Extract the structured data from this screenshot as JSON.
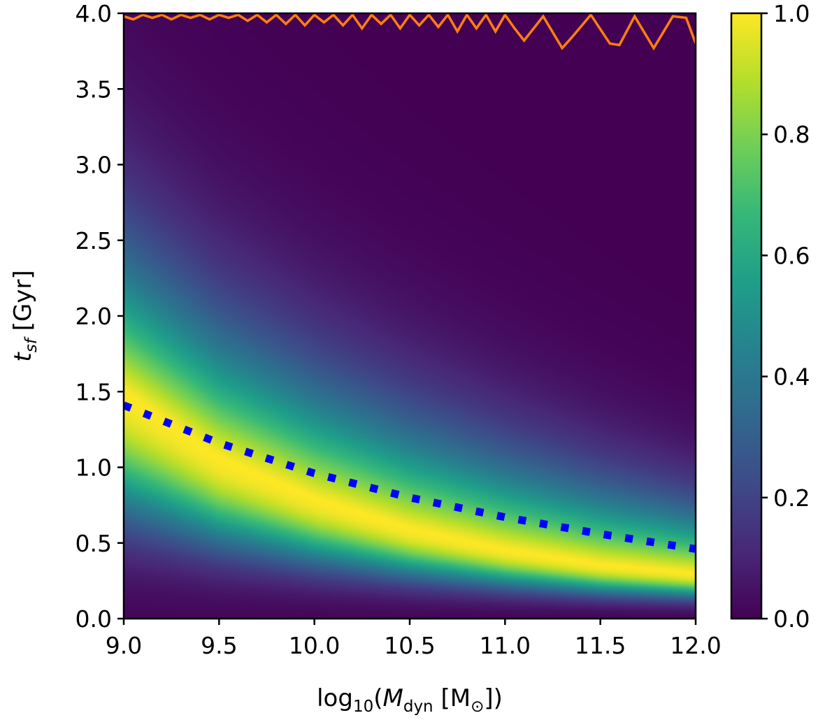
{
  "chart_data": {
    "type": "heatmap",
    "title": "",
    "xlabel": {
      "prefix": "log",
      "sub": "10",
      "open": "(",
      "var": "M",
      "var_sub": "dyn",
      "unit": " [M",
      "unit_sub": "⊙",
      "close": "])"
    },
    "ylabel": {
      "var": "t",
      "var_sub": "sf",
      "unit": " [Gyr]"
    },
    "xlim": [
      9.0,
      12.0
    ],
    "ylim": [
      0.0,
      4.0
    ],
    "xticks": [
      "9.0",
      "9.5",
      "10.0",
      "10.5",
      "11.0",
      "11.5",
      "12.0"
    ],
    "yticks": [
      "0.0",
      "0.5",
      "1.0",
      "1.5",
      "2.0",
      "2.5",
      "3.0",
      "3.5",
      "4.0"
    ],
    "colormap": "viridis",
    "colorbar": {
      "range": [
        0.0,
        1.0
      ],
      "ticks": [
        "0.0",
        "0.2",
        "0.4",
        "0.6",
        "0.8",
        "1.0"
      ]
    },
    "peak_ridge": {
      "x": [
        9.0,
        9.5,
        10.0,
        10.5,
        11.0,
        11.5,
        12.0
      ],
      "y": [
        1.5,
        1.07,
        0.8,
        0.6,
        0.46,
        0.36,
        0.3
      ]
    },
    "series": [
      {
        "style": "dotted",
        "color": "#0000ff",
        "x": [
          9.0,
          9.5,
          10.0,
          10.5,
          11.0,
          11.5,
          12.0
        ],
        "y": [
          1.41,
          1.16,
          0.96,
          0.8,
          0.67,
          0.56,
          0.46
        ]
      },
      {
        "style": "solid",
        "color": "#ff7f0e",
        "x": [
          9.0,
          9.05,
          9.1,
          9.15,
          9.2,
          9.25,
          9.3,
          9.35,
          9.4,
          9.45,
          9.5,
          9.55,
          9.6,
          9.65,
          9.7,
          9.75,
          9.8,
          9.85,
          9.9,
          9.95,
          10.0,
          10.05,
          10.1,
          10.15,
          10.2,
          10.25,
          10.3,
          10.35,
          10.4,
          10.45,
          10.5,
          10.55,
          10.6,
          10.65,
          10.7,
          10.75,
          10.8,
          10.85,
          10.9,
          10.95,
          11.0,
          11.05,
          11.1,
          11.2,
          11.3,
          11.35,
          11.45,
          11.55,
          11.6,
          11.68,
          11.78,
          11.88,
          11.95,
          12.0
        ],
        "y": [
          3.98,
          3.96,
          3.99,
          3.97,
          3.99,
          3.96,
          3.99,
          3.97,
          3.99,
          3.96,
          3.99,
          3.97,
          3.99,
          3.95,
          3.99,
          3.94,
          3.99,
          3.93,
          3.99,
          3.92,
          3.99,
          3.94,
          3.99,
          3.92,
          3.99,
          3.9,
          3.99,
          3.93,
          3.99,
          3.9,
          3.99,
          3.92,
          3.99,
          3.91,
          3.99,
          3.88,
          3.99,
          3.9,
          3.99,
          3.88,
          3.99,
          3.9,
          3.82,
          3.98,
          3.77,
          3.84,
          3.99,
          3.8,
          3.79,
          3.98,
          3.77,
          3.98,
          3.97,
          3.8
        ]
      }
    ]
  }
}
